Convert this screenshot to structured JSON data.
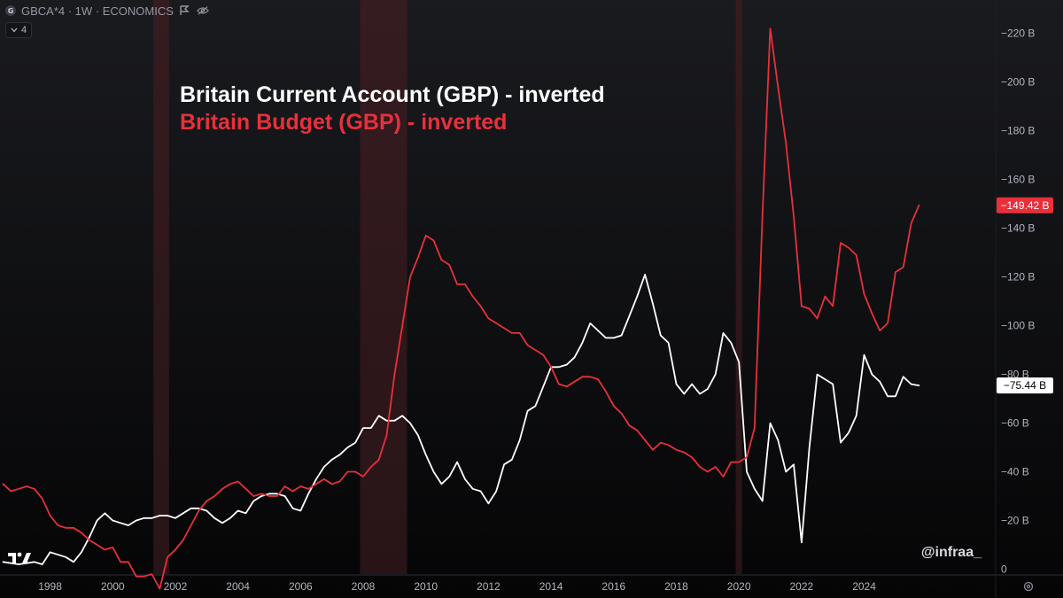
{
  "header": {
    "symbol_badge": "G",
    "symbol_line": "GBCA*4 · 1W · ECONOMICS",
    "flag_icon": "flag-icon",
    "visibility_icon": "eye-off-icon",
    "indicators_count": "4"
  },
  "legend": {
    "line1": "Britain Current Account (GBP) - inverted",
    "line2": "Britain Budget (GBP) - inverted"
  },
  "watermark": "@infraa_",
  "colors": {
    "background": "#0e0f12",
    "current_account": "#ffffff",
    "budget": "#e8303b",
    "recession_band": "#3a1a1e"
  },
  "chart_data": {
    "type": "line",
    "y_inverted": true,
    "ylim": [
      -225,
      2
    ],
    "xlim": [
      1996.4,
      2028.2
    ],
    "x_ticks": [
      "1998",
      "2000",
      "2002",
      "2004",
      "2006",
      "2008",
      "2010",
      "2012",
      "2014",
      "2016",
      "2018",
      "2020",
      "2022",
      "2024"
    ],
    "x_tick_values": [
      1998,
      2000,
      2002,
      2004,
      2006,
      2008,
      2010,
      2012,
      2014,
      2016,
      2018,
      2020,
      2022,
      2024
    ],
    "y_ticks": [
      "−220 B",
      "−200 B",
      "−180 B",
      "−160 B",
      "−140 B",
      "−120 B",
      "−100 B",
      "−80 B",
      "−60 B",
      "−40 B",
      "−20 B",
      "0"
    ],
    "y_tick_values": [
      -220,
      -200,
      -180,
      -160,
      -140,
      -120,
      -100,
      -80,
      -60,
      -40,
      -20,
      0
    ],
    "recessions": [
      [
        2001.3,
        2001.8
      ],
      [
        2007.9,
        2009.4
      ],
      [
        2019.9,
        2020.1
      ]
    ],
    "series": [
      {
        "name": "Britain Current Account (GBP) - inverted",
        "color": "#ffffff",
        "last_value_label": "−75.44 B",
        "last_value": -75.44,
        "points": [
          [
            1996.5,
            -3
          ],
          [
            1997.0,
            -2
          ],
          [
            1997.5,
            -3
          ],
          [
            1997.75,
            -2
          ],
          [
            1998.0,
            -7
          ],
          [
            1998.5,
            -5
          ],
          [
            1998.75,
            -3
          ],
          [
            1999.0,
            -7
          ],
          [
            1999.25,
            -13
          ],
          [
            1999.5,
            -20
          ],
          [
            1999.75,
            -23
          ],
          [
            2000.0,
            -20
          ],
          [
            2000.25,
            -19
          ],
          [
            2000.5,
            -18
          ],
          [
            2000.75,
            -20
          ],
          [
            2001.0,
            -21
          ],
          [
            2001.25,
            -21
          ],
          [
            2001.5,
            -22
          ],
          [
            2001.75,
            -22
          ],
          [
            2002.0,
            -21
          ],
          [
            2002.25,
            -23
          ],
          [
            2002.5,
            -25
          ],
          [
            2002.75,
            -25
          ],
          [
            2003.0,
            -24
          ],
          [
            2003.25,
            -21
          ],
          [
            2003.5,
            -19
          ],
          [
            2003.75,
            -21
          ],
          [
            2004.0,
            -24
          ],
          [
            2004.25,
            -23
          ],
          [
            2004.5,
            -28
          ],
          [
            2004.75,
            -30
          ],
          [
            2005.0,
            -31
          ],
          [
            2005.25,
            -31
          ],
          [
            2005.5,
            -30
          ],
          [
            2005.75,
            -25
          ],
          [
            2006.0,
            -24
          ],
          [
            2006.25,
            -31
          ],
          [
            2006.5,
            -37
          ],
          [
            2006.75,
            -42
          ],
          [
            2007.0,
            -45
          ],
          [
            2007.25,
            -47
          ],
          [
            2007.5,
            -50
          ],
          [
            2007.75,
            -52
          ],
          [
            2008.0,
            -58
          ],
          [
            2008.25,
            -58
          ],
          [
            2008.5,
            -63
          ],
          [
            2008.75,
            -61
          ],
          [
            2009.0,
            -61
          ],
          [
            2009.25,
            -63
          ],
          [
            2009.5,
            -60
          ],
          [
            2009.75,
            -55
          ],
          [
            2010.0,
            -47
          ],
          [
            2010.25,
            -40
          ],
          [
            2010.5,
            -35
          ],
          [
            2010.75,
            -38
          ],
          [
            2011.0,
            -44
          ],
          [
            2011.25,
            -37
          ],
          [
            2011.5,
            -33
          ],
          [
            2011.75,
            -32
          ],
          [
            2012.0,
            -27
          ],
          [
            2012.25,
            -32
          ],
          [
            2012.5,
            -43
          ],
          [
            2012.75,
            -45
          ],
          [
            2013.0,
            -53
          ],
          [
            2013.25,
            -65
          ],
          [
            2013.5,
            -67
          ],
          [
            2013.75,
            -75
          ],
          [
            2014.0,
            -83
          ],
          [
            2014.25,
            -83
          ],
          [
            2014.5,
            -84
          ],
          [
            2014.75,
            -87
          ],
          [
            2015.0,
            -93
          ],
          [
            2015.25,
            -101
          ],
          [
            2015.5,
            -98
          ],
          [
            2015.75,
            -95
          ],
          [
            2016.0,
            -95
          ],
          [
            2016.25,
            -96
          ],
          [
            2016.5,
            -104
          ],
          [
            2016.75,
            -112
          ],
          [
            2017.0,
            -121
          ],
          [
            2017.25,
            -109
          ],
          [
            2017.5,
            -96
          ],
          [
            2017.75,
            -93
          ],
          [
            2018.0,
            -76
          ],
          [
            2018.25,
            -72
          ],
          [
            2018.5,
            -76
          ],
          [
            2018.75,
            -72
          ],
          [
            2019.0,
            -74
          ],
          [
            2019.25,
            -80
          ],
          [
            2019.5,
            -97
          ],
          [
            2019.75,
            -93
          ],
          [
            2020.0,
            -85
          ],
          [
            2020.25,
            -40
          ],
          [
            2020.5,
            -33
          ],
          [
            2020.75,
            -28
          ],
          [
            2021.0,
            -60
          ],
          [
            2021.25,
            -53
          ],
          [
            2021.5,
            -40
          ],
          [
            2021.75,
            -43
          ],
          [
            2022.0,
            -11
          ],
          [
            2022.25,
            -50
          ],
          [
            2022.5,
            -80
          ],
          [
            2022.75,
            -78
          ],
          [
            2023.0,
            -76
          ],
          [
            2023.25,
            -52
          ],
          [
            2023.5,
            -56
          ],
          [
            2023.75,
            -63
          ],
          [
            2024.0,
            -88
          ],
          [
            2024.25,
            -80
          ],
          [
            2024.5,
            -77
          ],
          [
            2024.75,
            -71
          ],
          [
            2025.0,
            -71
          ],
          [
            2025.25,
            -79
          ],
          [
            2025.5,
            -76
          ],
          [
            2025.75,
            -75.44
          ]
        ]
      },
      {
        "name": "Britain Budget (GBP) - inverted",
        "color": "#e8303b",
        "last_value_label": "−149.42 B",
        "last_value": -149.42,
        "points": [
          [
            1996.5,
            -35
          ],
          [
            1996.75,
            -32
          ],
          [
            1997.0,
            -33
          ],
          [
            1997.25,
            -34
          ],
          [
            1997.5,
            -33
          ],
          [
            1997.75,
            -29
          ],
          [
            1998.0,
            -22
          ],
          [
            1998.25,
            -18
          ],
          [
            1998.5,
            -17
          ],
          [
            1998.75,
            -17
          ],
          [
            1999.0,
            -15
          ],
          [
            1999.25,
            -12
          ],
          [
            1999.5,
            -10
          ],
          [
            1999.75,
            -8
          ],
          [
            2000.0,
            -9
          ],
          [
            2000.25,
            -3
          ],
          [
            2000.5,
            -3
          ],
          [
            2000.75,
            3
          ],
          [
            2001.0,
            3
          ],
          [
            2001.25,
            2
          ],
          [
            2001.5,
            8
          ],
          [
            2001.75,
            -5
          ],
          [
            2002.0,
            -8
          ],
          [
            2002.25,
            -12
          ],
          [
            2002.5,
            -18
          ],
          [
            2002.75,
            -24
          ],
          [
            2003.0,
            -28
          ],
          [
            2003.25,
            -30
          ],
          [
            2003.5,
            -33
          ],
          [
            2003.75,
            -35
          ],
          [
            2004.0,
            -36
          ],
          [
            2004.25,
            -33
          ],
          [
            2004.5,
            -30
          ],
          [
            2004.75,
            -31
          ],
          [
            2005.0,
            -30
          ],
          [
            2005.25,
            -30
          ],
          [
            2005.5,
            -34
          ],
          [
            2005.75,
            -32
          ],
          [
            2006.0,
            -34
          ],
          [
            2006.25,
            -33
          ],
          [
            2006.5,
            -35
          ],
          [
            2006.75,
            -37
          ],
          [
            2007.0,
            -35
          ],
          [
            2007.25,
            -36
          ],
          [
            2007.5,
            -40
          ],
          [
            2007.75,
            -40
          ],
          [
            2008.0,
            -38
          ],
          [
            2008.25,
            -42
          ],
          [
            2008.5,
            -45
          ],
          [
            2008.75,
            -55
          ],
          [
            2009.0,
            -80
          ],
          [
            2009.25,
            -100
          ],
          [
            2009.5,
            -120
          ],
          [
            2009.75,
            -128
          ],
          [
            2010.0,
            -137
          ],
          [
            2010.25,
            -135
          ],
          [
            2010.5,
            -127
          ],
          [
            2010.75,
            -125
          ],
          [
            2011.0,
            -117
          ],
          [
            2011.25,
            -117
          ],
          [
            2011.5,
            -112
          ],
          [
            2011.75,
            -108
          ],
          [
            2012.0,
            -103
          ],
          [
            2012.25,
            -101
          ],
          [
            2012.5,
            -99
          ],
          [
            2012.75,
            -97
          ],
          [
            2013.0,
            -97
          ],
          [
            2013.25,
            -92
          ],
          [
            2013.5,
            -90
          ],
          [
            2013.75,
            -88
          ],
          [
            2014.0,
            -83
          ],
          [
            2014.25,
            -76
          ],
          [
            2014.5,
            -75
          ],
          [
            2014.75,
            -77
          ],
          [
            2015.0,
            -79
          ],
          [
            2015.25,
            -79
          ],
          [
            2015.5,
            -78
          ],
          [
            2015.75,
            -73
          ],
          [
            2016.0,
            -67
          ],
          [
            2016.25,
            -64
          ],
          [
            2016.5,
            -59
          ],
          [
            2016.75,
            -57
          ],
          [
            2017.0,
            -53
          ],
          [
            2017.25,
            -49
          ],
          [
            2017.5,
            -52
          ],
          [
            2017.75,
            -51
          ],
          [
            2018.0,
            -49
          ],
          [
            2018.25,
            -48
          ],
          [
            2018.5,
            -46
          ],
          [
            2018.75,
            -42
          ],
          [
            2019.0,
            -40
          ],
          [
            2019.25,
            -42
          ],
          [
            2019.5,
            -38
          ],
          [
            2019.75,
            -44
          ],
          [
            2020.0,
            -44
          ],
          [
            2020.25,
            -46
          ],
          [
            2020.5,
            -58
          ],
          [
            2020.75,
            -145
          ],
          [
            2021.0,
            -222
          ],
          [
            2021.25,
            -198
          ],
          [
            2021.5,
            -175
          ],
          [
            2021.75,
            -145
          ],
          [
            2022.0,
            -108
          ],
          [
            2022.25,
            -107
          ],
          [
            2022.5,
            -103
          ],
          [
            2022.75,
            -112
          ],
          [
            2023.0,
            -108
          ],
          [
            2023.25,
            -134
          ],
          [
            2023.5,
            -132
          ],
          [
            2023.75,
            -129
          ],
          [
            2024.0,
            -113
          ],
          [
            2024.25,
            -105
          ],
          [
            2024.5,
            -98
          ],
          [
            2024.75,
            -101
          ],
          [
            2025.0,
            -122
          ],
          [
            2025.25,
            -124
          ],
          [
            2025.5,
            -142
          ],
          [
            2025.75,
            -149.42
          ]
        ]
      }
    ]
  }
}
